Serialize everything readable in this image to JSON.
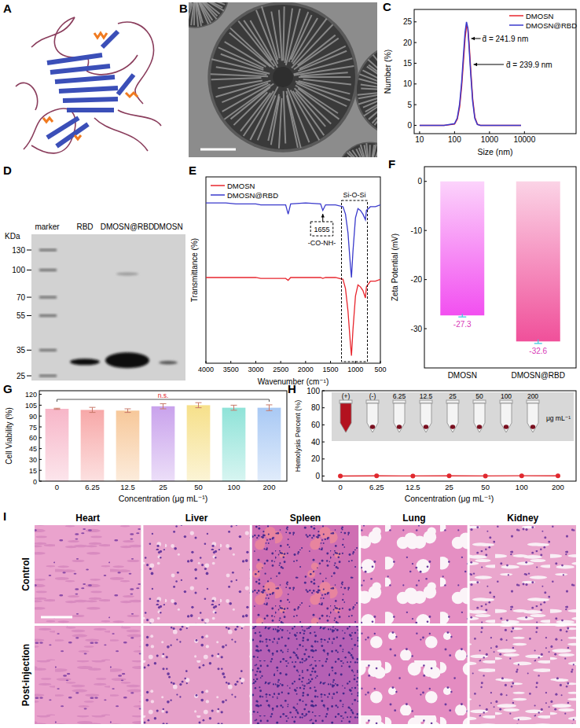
{
  "panel_letters": [
    "A",
    "B",
    "C",
    "D",
    "E",
    "F",
    "G",
    "H",
    "I"
  ],
  "chart_data": [
    {
      "type": "line",
      "x_label": "Size (nm)",
      "y_label": "Number (%)",
      "log": "x",
      "x": [
        10,
        50,
        100,
        120,
        140,
        160,
        180,
        200,
        220,
        240,
        260,
        290,
        330,
        380,
        450,
        550,
        700,
        1000,
        8000
      ],
      "series": [
        {
          "name": "DMOSN",
          "color": "#e8262e",
          "values": [
            0,
            0,
            0.3,
            1.5,
            4.5,
            9.5,
            15.5,
            21,
            24,
            23.5,
            20,
            13.5,
            6.5,
            2,
            0.3,
            0,
            0,
            0,
            0
          ]
        },
        {
          "name": "DMOSN@RBD",
          "color": "#3a3acc",
          "values": [
            0,
            0,
            0.4,
            1.8,
            5.2,
            10.5,
            17,
            22.5,
            25,
            23.5,
            19,
            12.5,
            5.8,
            1.7,
            0.2,
            0,
            0,
            0,
            0
          ]
        }
      ],
      "xlim": [
        7,
        300000
      ],
      "ylim": [
        -2,
        28
      ],
      "xticks": [
        10,
        100,
        1000,
        10000
      ],
      "yticks": [
        0,
        5,
        10,
        15,
        20,
        25
      ],
      "legend": "upper right",
      "annotations": [
        "d̄ = 241.9 nm",
        "d̄ = 239.9 nm"
      ]
    },
    {
      "type": "line",
      "x_label": "Wavenumber (cm⁻¹)",
      "y_label": "Transmittance (%)",
      "x": [
        4000,
        3600,
        3400,
        3000,
        2900,
        2400,
        2350,
        2300,
        2000,
        1700,
        1655,
        1600,
        1400,
        1250,
        1200,
        1150,
        1100,
        1080,
        1050,
        1000,
        950,
        900,
        850,
        800,
        780,
        700,
        600,
        500
      ],
      "series": [
        {
          "name": "DMOSN",
          "color": "#e8262e",
          "values": [
            46,
            46,
            46,
            46,
            45.5,
            45.5,
            44.5,
            46,
            46,
            46,
            45.5,
            46,
            46,
            45,
            40,
            28,
            10,
            4,
            18,
            36,
            42,
            41,
            39,
            35,
            41,
            44,
            44,
            45
          ]
        },
        {
          "name": "DMOSN@RBD",
          "color": "#3a3acc",
          "values": [
            86,
            86,
            85.5,
            85.5,
            85,
            85,
            80,
            85.5,
            86,
            85.5,
            82,
            85,
            85,
            84,
            80,
            70,
            52,
            46,
            60,
            78,
            83,
            82,
            80,
            77,
            82,
            84,
            84,
            85
          ]
        }
      ],
      "xlim": [
        4000,
        500
      ],
      "ylim": [
        0,
        100
      ],
      "xticks": [
        4000,
        3500,
        3000,
        2500,
        2000,
        1500,
        1000,
        500
      ],
      "tick_labels": "x",
      "legend": "upper left",
      "annotations": [
        "1655",
        "-CO-NH-",
        "Si-O-Si"
      ]
    },
    {
      "type": "bar",
      "categories": [
        "DMOSN",
        "DMOSN@RBD"
      ],
      "values": [
        -27.3,
        -32.6
      ],
      "errors": [
        0.3,
        0.4
      ],
      "colors": [
        "#f24ff0",
        "#f0509a"
      ],
      "y_label": "Zeta Potential (mV)",
      "ylim": [
        -38,
        3
      ],
      "yticks": [
        0,
        -10,
        -20,
        -30
      ],
      "data_labels": true
    },
    {
      "type": "bar",
      "categories": [
        "0",
        "6.25",
        "12.5",
        "25",
        "50",
        "100",
        "200"
      ],
      "values": [
        100,
        98.5,
        97.5,
        103.5,
        105,
        101.5,
        101.5
      ],
      "errors": [
        0.8,
        3.5,
        2.5,
        3.5,
        3.5,
        3.5,
        4
      ],
      "colors": [
        "#f7b6c8",
        "#f7a8a8",
        "#f7c89a",
        "#c9a2ec",
        "#f6e08a",
        "#8fe3d8",
        "#a9c9f4"
      ],
      "x_label": "Concentration (μg mL⁻¹)",
      "y_label": "Cell Viability (%)",
      "ylim": [
        0,
        125
      ],
      "yticks": [
        0,
        15,
        30,
        45,
        60,
        75,
        90,
        105,
        120
      ],
      "annotations": [
        "n.s."
      ]
    },
    {
      "type": "line",
      "categories": [
        "0",
        "6.25",
        "12.5",
        "25",
        "50",
        "100",
        "200"
      ],
      "values": [
        0,
        0.2,
        0.1,
        0.2,
        0.1,
        0.3,
        0.2
      ],
      "color": "#e0282e",
      "marker": "circle",
      "x_label": "Concentration (μg mL⁻¹)",
      "y_label": "Hemolysis Percent (%)",
      "ylim": [
        -6,
        100
      ],
      "yticks": [
        0,
        20,
        40,
        60,
        80,
        100
      ],
      "inset_labels": [
        "(+)",
        "(-)",
        "6.25",
        "12.5",
        "25",
        "50",
        "100",
        "200",
        "μg mL⁻¹"
      ]
    }
  ],
  "blot": {
    "unit_label": "KDa",
    "lanes": [
      "marker",
      "RBD",
      "DMOSN@RBD",
      "DMOSN"
    ],
    "marker_kda": [
      130,
      100,
      70,
      55,
      35,
      25
    ]
  },
  "histology": {
    "rows": [
      "Control",
      "Post-injection"
    ],
    "columns": [
      "Heart",
      "Liver",
      "Spleen",
      "Lung",
      "Kidney"
    ]
  }
}
